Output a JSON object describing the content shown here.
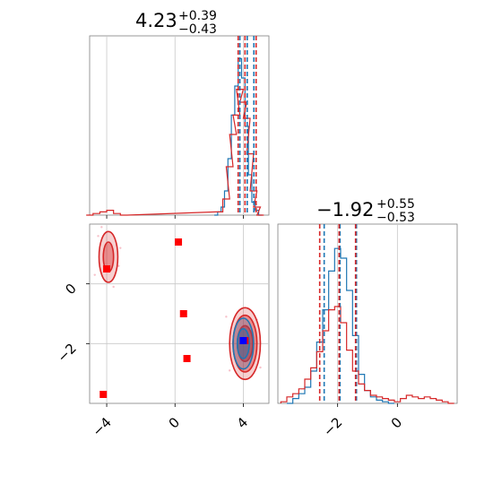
{
  "chart_data": [
    {
      "type": "histogram",
      "panel": "marginal-param-1",
      "title": {
        "value": "4.23",
        "plus": "+0.39",
        "minus": "−0.43"
      },
      "xlim": [
        -5,
        5.5
      ],
      "grid": true,
      "series": [
        {
          "name": "",
          "color": "#1f77b4",
          "bins_x": [
            2.4,
            2.6,
            2.8,
            3.0,
            3.2,
            3.4,
            3.6,
            3.8,
            4.0,
            4.2,
            4.4,
            4.6,
            4.8,
            5.0
          ],
          "heights": [
            0.0,
            0.02,
            0.05,
            0.15,
            0.35,
            0.62,
            0.8,
            0.97,
            0.85,
            0.55,
            0.25,
            0.08,
            0.03,
            0.0
          ]
        },
        {
          "name": "",
          "color": "#d62728",
          "bins_x": [
            -5.0,
            -4.6,
            -4.2,
            -3.8,
            -3.4,
            -3.0,
            2.6,
            3.0,
            3.2,
            3.4,
            3.6,
            3.8,
            4.0,
            4.2,
            4.4,
            4.6,
            4.8,
            5.0
          ],
          "heights": [
            0.0,
            0.01,
            0.02,
            0.03,
            0.01,
            0.0,
            0.02,
            0.1,
            0.3,
            0.5,
            0.62,
            0.78,
            0.7,
            0.6,
            0.38,
            0.15,
            0.05,
            0.0
          ]
        }
      ],
      "quantile_lines": [
        {
          "color": "#1f77b4",
          "x": [
            3.8,
            4.23,
            4.62
          ]
        },
        {
          "color": "#d62728",
          "x": [
            3.7,
            4.1,
            4.75
          ]
        }
      ]
    },
    {
      "type": "contour-2d",
      "panel": "joint-param-1-param-2",
      "xlim": [
        -5,
        5.5
      ],
      "ylim": [
        -4,
        2
      ],
      "xticks": [
        "−4",
        "0",
        "4"
      ],
      "yticks": [
        "−2",
        "0"
      ],
      "grid": true,
      "contours": [
        {
          "color": "#d62728",
          "center": [
            4.1,
            -2.0
          ],
          "radii": [
            [
              0.9,
              1.2
            ],
            [
              0.7,
              0.95
            ],
            [
              0.45,
              0.6
            ]
          ]
        },
        {
          "color": "#1f77b4",
          "center": [
            4.0,
            -2.0
          ],
          "radii": [
            [
              0.6,
              0.85
            ],
            [
              0.35,
              0.5
            ]
          ]
        },
        {
          "color": "#d62728",
          "center": [
            -3.9,
            0.9
          ],
          "radii": [
            [
              0.55,
              0.85
            ],
            [
              0.3,
              0.5
            ]
          ]
        }
      ],
      "markers_red": [
        [
          0.2,
          1.4
        ],
        [
          0.5,
          -1.0
        ],
        [
          0.7,
          -2.5
        ],
        [
          -4.0,
          0.5
        ],
        [
          -4.2,
          -3.7
        ],
        [
          4.1,
          -1.9
        ]
      ],
      "markers_blue": [
        [
          4.0,
          -1.9
        ]
      ],
      "outlier_points": [
        [
          -4.5,
          1.6
        ],
        [
          -3.2,
          1.2
        ],
        [
          -4.7,
          0.3
        ],
        [
          -3.6,
          -0.1
        ],
        [
          -4.3,
          1.9
        ],
        [
          -3.3,
          0.6
        ],
        [
          3.0,
          -1.1
        ],
        [
          5.0,
          -2.8
        ],
        [
          3.2,
          -2.9
        ],
        [
          4.8,
          -1.2
        ]
      ]
    },
    {
      "type": "histogram",
      "panel": "marginal-param-2",
      "title": {
        "value": "−1.92",
        "plus": "+0.55",
        "minus": "−0.53"
      },
      "xlim": [
        -4,
        2
      ],
      "xticks": [
        "−2",
        "0"
      ],
      "grid": true,
      "series": [
        {
          "name": "",
          "color": "#1f77b4",
          "bins_x": [
            -3.6,
            -3.4,
            -3.2,
            -3.0,
            -2.8,
            -2.6,
            -2.4,
            -2.2,
            -2.0,
            -1.8,
            -1.6,
            -1.4,
            -1.2,
            -1.0,
            -0.8,
            -0.6,
            -0.4,
            -0.2
          ],
          "heights": [
            0.0,
            0.03,
            0.06,
            0.1,
            0.2,
            0.38,
            0.58,
            0.82,
            0.96,
            0.9,
            0.7,
            0.42,
            0.18,
            0.08,
            0.04,
            0.02,
            0.01,
            0.0
          ]
        },
        {
          "name": "",
          "color": "#d62728",
          "bins_x": [
            -3.8,
            -3.6,
            -3.4,
            -3.2,
            -3.0,
            -2.8,
            -2.6,
            -2.4,
            -2.2,
            -2.0,
            -1.8,
            -1.6,
            -1.4,
            -1.2,
            -1.0,
            -0.8,
            -0.6,
            -0.4,
            -0.2,
            0.0,
            0.2,
            0.4,
            0.6,
            0.8,
            1.0,
            1.2,
            1.4,
            1.6,
            1.8
          ],
          "heights": [
            0.01,
            0.04,
            0.06,
            0.09,
            0.15,
            0.22,
            0.32,
            0.45,
            0.58,
            0.6,
            0.5,
            0.33,
            0.2,
            0.12,
            0.08,
            0.05,
            0.04,
            0.03,
            0.02,
            0.01,
            0.03,
            0.05,
            0.04,
            0.03,
            0.04,
            0.03,
            0.02,
            0.01,
            0.0
          ]
        }
      ],
      "quantile_lines": [
        {
          "color": "#1f77b4",
          "x": [
            -2.45,
            -1.92,
            -1.37
          ]
        },
        {
          "color": "#d62728",
          "x": [
            -2.6,
            -1.95,
            -1.4
          ]
        }
      ]
    }
  ]
}
